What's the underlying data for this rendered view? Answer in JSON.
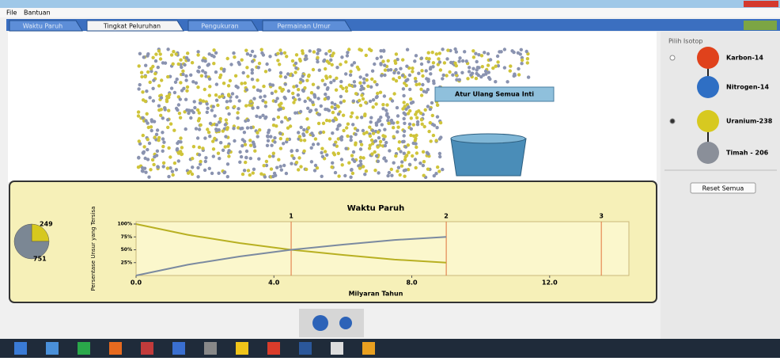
{
  "menu": [
    "File",
    "Bantuan"
  ],
  "tabs": [
    "Waktu Paruh",
    "Tingkat Peluruhan",
    "Pengukuran",
    "Permainan Umur"
  ],
  "sim": {
    "reset_nuclei_button": "Atur Ulang Semua Inti"
  },
  "isotope_panel": {
    "title": "Pilih Isotop",
    "items": [
      "Karbon-14",
      "Nitrogen-14",
      "Uranium-238",
      "Timah - 206"
    ],
    "reset_button": "Reset Semua"
  },
  "pie": {
    "values": [
      249,
      751
    ],
    "colors": [
      "#d6c81e",
      "#7b8794"
    ]
  },
  "chart": {
    "type": "line",
    "title": "Waktu Paruh",
    "x_label": "Milyaran Tahun",
    "y_label": "Persentase Unsur yang Tersisa",
    "x": [
      0,
      1.5,
      3,
      4.5,
      6,
      7.5,
      9
    ],
    "series": [
      {
        "color": "#b8b022",
        "values": [
          100,
          79,
          63,
          50,
          40,
          31,
          25
        ]
      },
      {
        "color": "#7b8aa0",
        "values": [
          0,
          21,
          37,
          50,
          60,
          69,
          75
        ]
      }
    ],
    "xlim": [
      0,
      14.3
    ],
    "ylim": [
      0,
      100
    ],
    "xticks": [
      {
        "value": 0,
        "label": "0.0"
      },
      {
        "value": 4,
        "label": "4.0"
      },
      {
        "value": 8,
        "label": "8.0"
      },
      {
        "value": 12,
        "label": "12.0"
      }
    ],
    "yticks": [
      {
        "value": 100,
        "label": "100%"
      },
      {
        "value": 75,
        "label": "75%"
      },
      {
        "value": 50,
        "label": "50%"
      },
      {
        "value": 25,
        "label": "25%"
      }
    ],
    "half_lives": [
      {
        "value": 4.5,
        "label": "1"
      },
      {
        "value": 9,
        "label": "2"
      },
      {
        "value": 13.5,
        "label": "3"
      }
    ]
  }
}
